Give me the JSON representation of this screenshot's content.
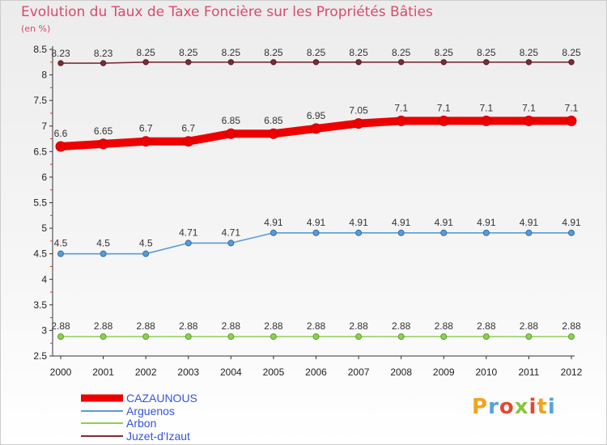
{
  "title": "Evolution du Taux de Taxe Foncière sur les Propriétés Bâties",
  "unit_label": "(en %)",
  "logo_text": "Proxiti",
  "chart_data": {
    "type": "line",
    "title": "Evolution du Taux de Taxe Foncière sur les Propriétés Bâties",
    "ylabel": "(en %)",
    "xlabel": "",
    "x": [
      "2000",
      "2001",
      "2002",
      "2003",
      "2004",
      "2005",
      "2006",
      "2007",
      "2008",
      "2009",
      "2010",
      "2011",
      "2012"
    ],
    "ylim": [
      2.5,
      8.5
    ],
    "yticks": [
      "2.5",
      "3",
      "3.5",
      "4",
      "4.5",
      "5",
      "5.5",
      "6",
      "6.5",
      "7",
      "7.5",
      "8",
      "8.5"
    ],
    "grid": false,
    "legend_position": "bottom-left",
    "series": [
      {
        "name": "CAZAUNOUS",
        "color": "#ee0000",
        "values": [
          6.6,
          6.65,
          6.7,
          6.7,
          6.85,
          6.85,
          6.95,
          7.05,
          7.1,
          7.1,
          7.1,
          7.1,
          7.1
        ],
        "labels": [
          "6.6",
          "6.65",
          "6.7",
          "6.7",
          "6.85",
          "6.85",
          "6.95",
          "7.05",
          "7.1",
          "7.1",
          "7.1",
          "7.1",
          "7.1"
        ]
      },
      {
        "name": "Arguenos",
        "color": "#5b9bd5",
        "values": [
          4.5,
          4.5,
          4.5,
          4.71,
          4.71,
          4.91,
          4.91,
          4.91,
          4.91,
          4.91,
          4.91,
          4.91,
          4.91
        ],
        "labels": [
          "4.5",
          "4.5",
          "4.5",
          "4.71",
          "4.71",
          "4.91",
          "4.91",
          "4.91",
          "4.91",
          "4.91",
          "4.91",
          "4.91",
          "4.91"
        ]
      },
      {
        "name": "Arbon",
        "color": "#8dce55",
        "values": [
          2.88,
          2.88,
          2.88,
          2.88,
          2.88,
          2.88,
          2.88,
          2.88,
          2.88,
          2.88,
          2.88,
          2.88,
          2.88
        ],
        "labels": [
          "2.88",
          "2.88",
          "2.88",
          "2.88",
          "2.88",
          "2.88",
          "2.88",
          "2.88",
          "2.88",
          "2.88",
          "2.88",
          "2.88",
          "2.88"
        ]
      },
      {
        "name": "Juzet-d'Izaut",
        "color": "#7a2e35",
        "values": [
          8.23,
          8.23,
          8.25,
          8.25,
          8.25,
          8.25,
          8.25,
          8.25,
          8.25,
          8.25,
          8.25,
          8.25,
          8.25
        ],
        "labels": [
          "8.23",
          "8.23",
          "8.25",
          "8.25",
          "8.25",
          "8.25",
          "8.25",
          "8.25",
          "8.25",
          "8.25",
          "8.25",
          "8.25",
          "8.25"
        ]
      }
    ]
  }
}
